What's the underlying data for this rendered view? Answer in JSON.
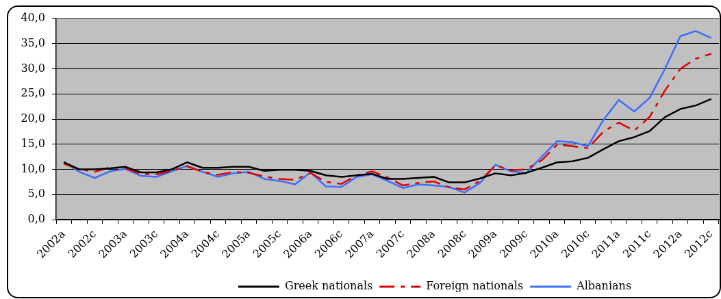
{
  "chart_data": {
    "type": "line",
    "categories": [
      "2002a",
      null,
      "2002c",
      null,
      "2003a",
      null,
      "2003c",
      null,
      "2004a",
      null,
      "2004c",
      null,
      "2005a",
      null,
      "2005c",
      null,
      "2006a",
      null,
      "2006c",
      null,
      "2007a",
      null,
      "2007c",
      null,
      "2008a",
      null,
      "2008c",
      null,
      "2009a",
      null,
      "2009c",
      null,
      "2010a",
      null,
      "2010c",
      null,
      "2011a",
      null,
      "2011c",
      null,
      "2012a",
      null,
      "2012c"
    ],
    "series": [
      {
        "name": "Greek nationals",
        "color": "#000000",
        "line_style": "solid",
        "values": [
          11.4,
          10.0,
          10.0,
          10.2,
          10.5,
          9.4,
          9.4,
          10.0,
          11.4,
          10.3,
          10.3,
          10.5,
          10.5,
          9.7,
          9.9,
          9.9,
          9.7,
          8.8,
          8.5,
          8.8,
          9.1,
          8.1,
          8.1,
          8.3,
          8.5,
          7.4,
          7.4,
          8.2,
          9.2,
          8.8,
          9.3,
          10.3,
          11.4,
          11.6,
          12.3,
          14.0,
          15.6,
          16.4,
          17.6,
          20.4,
          22.0,
          22.7,
          24.0
        ]
      },
      {
        "name": "Foreign nationals",
        "color": "#e00000",
        "line_style": "dashed",
        "values": [
          11.1,
          10.0,
          9.5,
          10.4,
          10.2,
          9.1,
          9.0,
          9.7,
          10.6,
          9.5,
          8.9,
          9.5,
          9.3,
          8.6,
          8.1,
          7.9,
          9.3,
          7.5,
          7.1,
          8.8,
          9.6,
          8.4,
          6.8,
          7.3,
          7.6,
          6.4,
          6.0,
          7.7,
          10.8,
          9.8,
          10.0,
          11.8,
          14.9,
          14.6,
          14.2,
          17.5,
          19.3,
          17.7,
          20.4,
          25.7,
          30.0,
          32.0,
          33.0
        ]
      },
      {
        "name": "Albanians",
        "color": "#3b6eff",
        "line_style": "solid",
        "values": [
          11.5,
          9.5,
          8.3,
          9.6,
          10.1,
          8.7,
          8.5,
          9.6,
          10.7,
          9.5,
          8.5,
          9.2,
          9.5,
          8.1,
          7.7,
          7.0,
          9.4,
          6.6,
          6.5,
          8.5,
          9.0,
          7.7,
          6.3,
          7.0,
          6.8,
          6.5,
          5.4,
          7.3,
          10.9,
          9.6,
          9.3,
          12.5,
          15.6,
          15.4,
          14.6,
          19.8,
          23.8,
          21.5,
          24.2,
          30.0,
          36.5,
          37.5,
          36.1
        ]
      }
    ],
    "ylim": [
      0,
      40
    ],
    "yticks": [
      {
        "value": 0,
        "label": "0,0"
      },
      {
        "value": 5,
        "label": "5,0"
      },
      {
        "value": 10,
        "label": "10,0"
      },
      {
        "value": 15,
        "label": "15,0"
      },
      {
        "value": 20,
        "label": "20,0"
      },
      {
        "value": 25,
        "label": "25,0"
      },
      {
        "value": 30,
        "label": "30,0"
      },
      {
        "value": 35,
        "label": "35,0"
      },
      {
        "value": 40,
        "label": "40,0"
      }
    ],
    "grid": "y",
    "legend": "bottom",
    "marker": "none"
  }
}
